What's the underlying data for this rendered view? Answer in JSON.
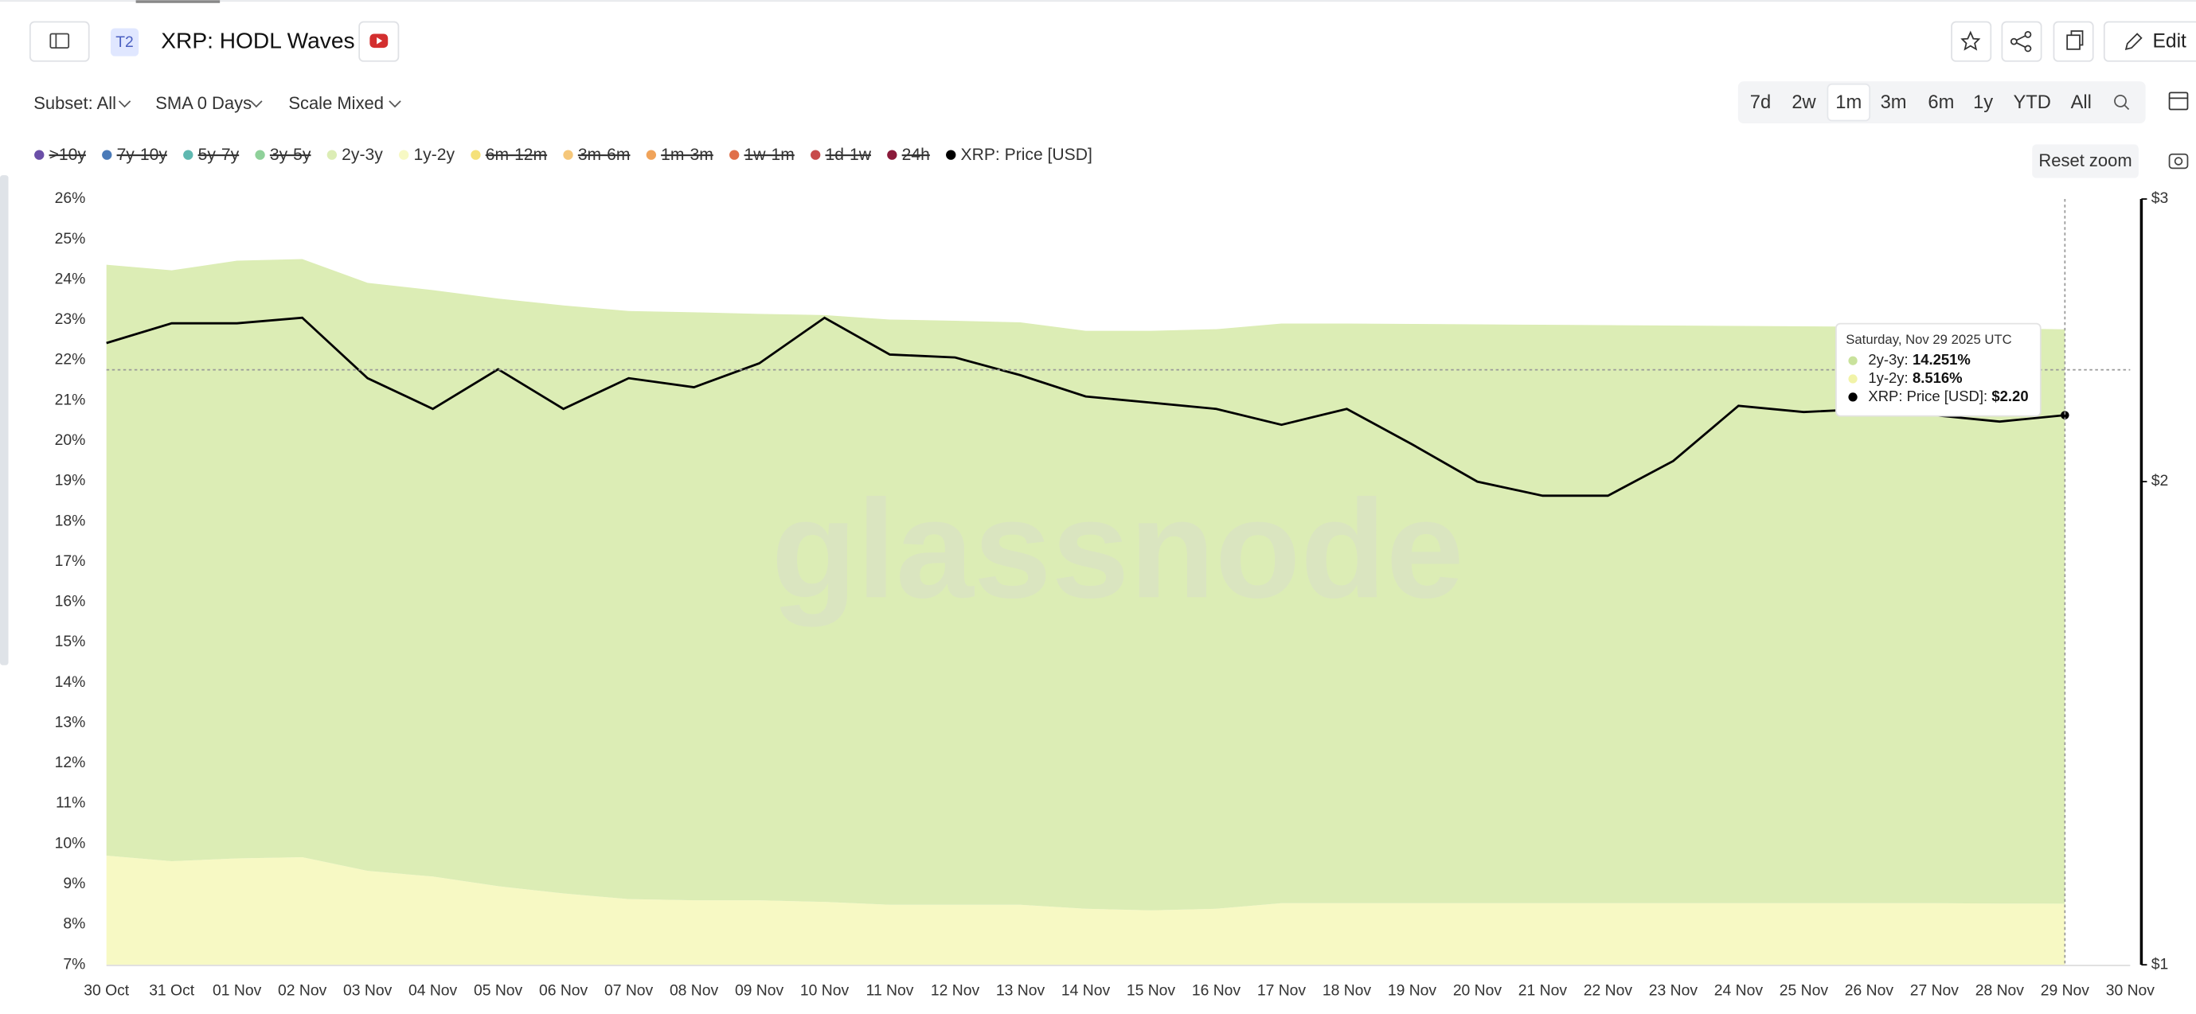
{
  "ui": {
    "badge": "T2",
    "title": "XRP: HODL Waves",
    "edit": "Edit",
    "subset": "Subset: All",
    "sma": "SMA 0 Days",
    "scale": "Scale Mixed",
    "ranges": [
      "7d",
      "2w",
      "1m",
      "3m",
      "6m",
      "1y",
      "YTD",
      "All"
    ],
    "active_range": "1m",
    "reset": "Reset zoom",
    "watermark": "glassnode"
  },
  "chart_data": {
    "type": "area",
    "log_y2": true,
    "categories": [
      "30 Oct",
      "31 Oct",
      "01 Nov",
      "02 Nov",
      "03 Nov",
      "04 Nov",
      "05 Nov",
      "06 Nov",
      "07 Nov",
      "08 Nov",
      "09 Nov",
      "10 Nov",
      "11 Nov",
      "12 Nov",
      "13 Nov",
      "14 Nov",
      "15 Nov",
      "16 Nov",
      "17 Nov",
      "18 Nov",
      "19 Nov",
      "20 Nov",
      "21 Nov",
      "22 Nov",
      "23 Nov",
      "24 Nov",
      "25 Nov",
      "26 Nov",
      "27 Nov",
      "28 Nov",
      "29 Nov",
      "30 Nov"
    ],
    "series": [
      {
        "name": "2y-3y",
        "color": "#dcedb5",
        "values": [
          14.66,
          14.66,
          14.83,
          14.84,
          14.59,
          14.55,
          14.58,
          14.59,
          14.59,
          14.59,
          14.55,
          14.56,
          14.52,
          14.49,
          14.45,
          14.34,
          14.38,
          14.38,
          14.38,
          14.38,
          14.37,
          14.36,
          14.35,
          14.34,
          14.33,
          14.32,
          14.31,
          14.3,
          14.28,
          14.27,
          14.251,
          null
        ]
      },
      {
        "name": "1y-2y",
        "color": "#f7f9c4",
        "values": [
          9.71,
          9.57,
          9.64,
          9.67,
          9.33,
          9.19,
          8.95,
          8.77,
          8.63,
          8.6,
          8.6,
          8.56,
          8.49,
          8.49,
          8.49,
          8.39,
          8.35,
          8.39,
          8.53,
          8.53,
          8.53,
          8.53,
          8.53,
          8.53,
          8.53,
          8.53,
          8.53,
          8.53,
          8.53,
          8.52,
          8.516,
          null
        ]
      },
      {
        "name": "XRP: Price [USD]",
        "color": "#000000",
        "axis": "y2",
        "values": [
          2.44,
          2.51,
          2.51,
          2.53,
          2.32,
          2.22,
          2.35,
          2.22,
          2.32,
          2.29,
          2.37,
          2.53,
          2.4,
          2.39,
          2.33,
          2.26,
          2.24,
          2.22,
          2.17,
          2.22,
          2.11,
          2.0,
          1.96,
          1.96,
          2.06,
          2.23,
          2.21,
          2.22,
          2.2,
          2.18,
          2.2,
          null
        ]
      }
    ],
    "hidden_series": [
      {
        "name": ">10y",
        "color": "#6b4fa8"
      },
      {
        "name": "7y-10y",
        "color": "#4a7ab8"
      },
      {
        "name": "5y-7y",
        "color": "#5fb8b0"
      },
      {
        "name": "3y-5y",
        "color": "#8fd19a"
      },
      {
        "name": "6m-12m",
        "color": "#f5e17a"
      },
      {
        "name": "3m-6m",
        "color": "#f5c77a"
      },
      {
        "name": "1m-3m",
        "color": "#f0a35a"
      },
      {
        "name": "1w-1m",
        "color": "#e0704a"
      },
      {
        "name": "1d-1w",
        "color": "#c74a4a"
      },
      {
        "name": "24h",
        "color": "#8a1a3a"
      }
    ],
    "ylim": [
      7,
      26
    ],
    "yticks": [
      {
        "value": 7,
        "label": "7%"
      },
      {
        "value": 8,
        "label": "8%"
      },
      {
        "value": 9,
        "label": "9%"
      },
      {
        "value": 10,
        "label": "10%"
      },
      {
        "value": 11,
        "label": "11%"
      },
      {
        "value": 12,
        "label": "12%"
      },
      {
        "value": 13,
        "label": "13%"
      },
      {
        "value": 14,
        "label": "14%"
      },
      {
        "value": 15,
        "label": "15%"
      },
      {
        "value": 16,
        "label": "16%"
      },
      {
        "value": 17,
        "label": "17%"
      },
      {
        "value": 18,
        "label": "18%"
      },
      {
        "value": 19,
        "label": "19%"
      },
      {
        "value": 20,
        "label": "20%"
      },
      {
        "value": 21,
        "label": "21%"
      },
      {
        "value": 22,
        "label": "22%"
      },
      {
        "value": 23,
        "label": "23%"
      },
      {
        "value": 24,
        "label": "24%"
      },
      {
        "value": 25,
        "label": "25%"
      },
      {
        "value": 26,
        "label": "26%"
      }
    ],
    "y2lim": [
      1,
      3
    ],
    "y2ticks": [
      {
        "value": 1,
        "label": "$1"
      },
      {
        "value": 2,
        "label": "$2"
      },
      {
        "value": 3,
        "label": "$3"
      }
    ],
    "tooltip": {
      "title": "Saturday, Nov 29 2025 UTC",
      "rows": [
        {
          "label": "2y-3y:",
          "value": "14.251%"
        },
        {
          "label": "1y-2y:",
          "value": "8.516%"
        },
        {
          "label": "XRP: Price [USD]:",
          "value": "$2.20"
        }
      ]
    }
  }
}
